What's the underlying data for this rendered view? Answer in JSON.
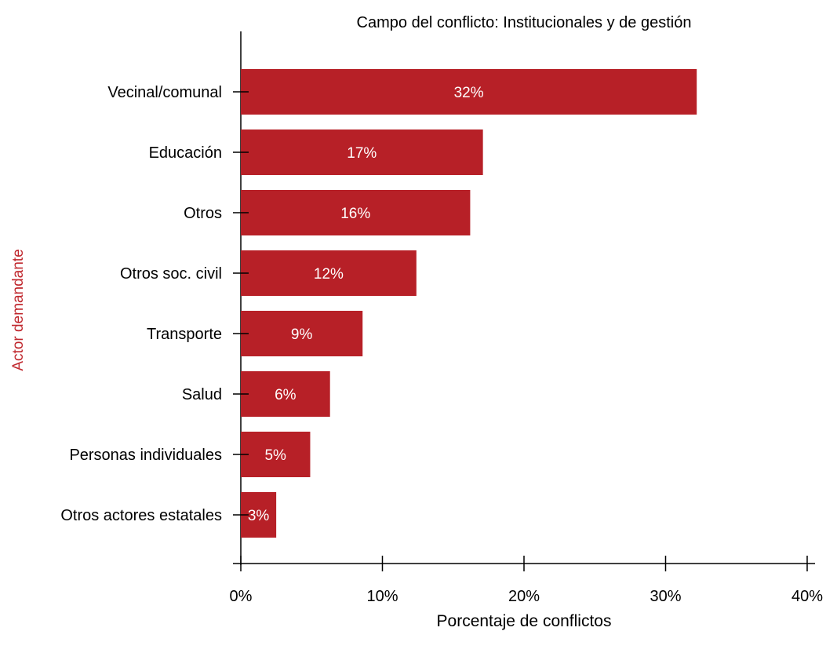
{
  "chart_data": {
    "type": "bar",
    "orientation": "horizontal",
    "title": "Campo del conflicto: Institucionales y de gestión",
    "xlabel": "Porcentaje de conflictos",
    "ylabel": "Actor demandante",
    "categories": [
      "Vecinal/comunal",
      "Educación",
      "Otros",
      "Otros soc. civil",
      "Transporte",
      "Salud",
      "Personas individuales",
      "Otros actores estatales"
    ],
    "values": [
      32.2,
      17.1,
      16.2,
      12.4,
      8.6,
      6.3,
      4.9,
      2.5
    ],
    "data_labels": [
      "32%",
      "17%",
      "16%",
      "12%",
      "9%",
      "6%",
      "5%",
      "3%"
    ],
    "xlim": [
      0,
      40
    ],
    "xticks": [
      0,
      10,
      20,
      30,
      40
    ],
    "xtick_labels": [
      "0%",
      "10%",
      "20%",
      "30%",
      "40%"
    ],
    "bar_color": "#b72027",
    "ylabel_color": "#c0282e",
    "grid": false
  }
}
